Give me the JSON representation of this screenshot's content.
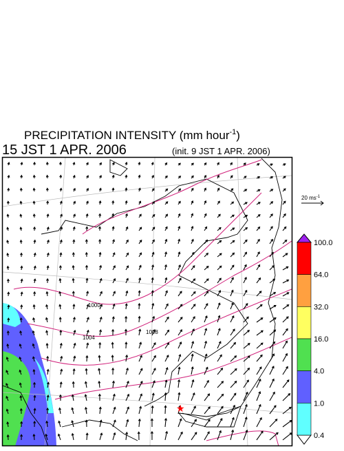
{
  "header": {
    "title": "PRECIPITATION INTENSITY (mm hour",
    "title_sup": "-1",
    "title_close": ")",
    "valid_time": "15 JST 1 APR. 2006",
    "init_time": "(init. 9 JST 1 APR. 2006)"
  },
  "wind_scale": {
    "label": "20 ms",
    "sup": "-1"
  },
  "colorbar": {
    "labels": [
      "100.0",
      "64.0",
      "32.0",
      "16.0",
      "4.0",
      "1.0",
      "0.4"
    ],
    "colors": [
      "#ff0000",
      "#ffa040",
      "#ffff60",
      "#50e050",
      "#6060ff",
      "#60ffff"
    ]
  },
  "isobar_labels": [
    "1000",
    "1004",
    "1008"
  ]
}
